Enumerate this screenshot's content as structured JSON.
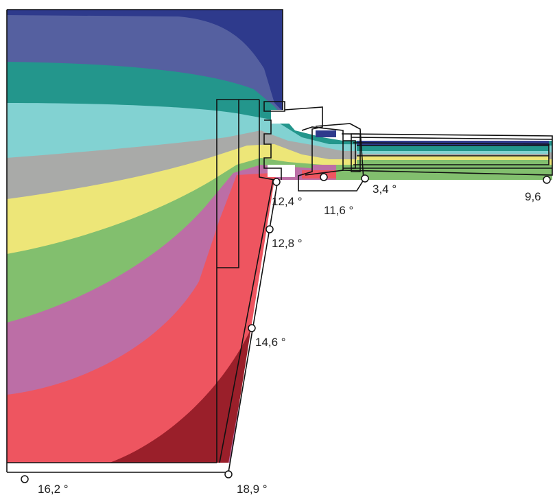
{
  "isotherm_colors": {
    "band_1": "#2e3a8c",
    "band_2": "#5560a0",
    "band_3": "#23968c",
    "band_4": "#82d2d2",
    "band_5": "#a9aaa8",
    "band_6": "#ede678",
    "band_7": "#82bf6e",
    "band_8": "#bc6ea6",
    "band_9": "#ee5560",
    "band_10": "#9a1f2a"
  },
  "temperature_points": [
    {
      "id": "p1",
      "label": "12,4 °"
    },
    {
      "id": "p2",
      "label": "11,6 °"
    },
    {
      "id": "p3",
      "label": "3,4 °"
    },
    {
      "id": "p4",
      "label": "9,6"
    },
    {
      "id": "p5",
      "label": "12,8 °"
    },
    {
      "id": "p6",
      "label": "14,6 °"
    },
    {
      "id": "p7",
      "label": "16,2 °"
    },
    {
      "id": "p8",
      "label": "18,9 °"
    }
  ]
}
